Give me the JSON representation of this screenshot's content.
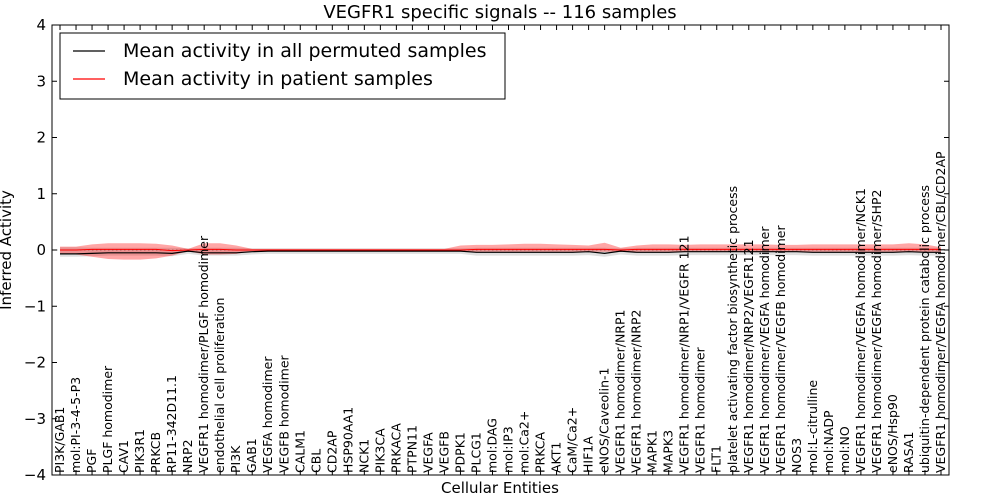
{
  "chart_data": {
    "type": "line",
    "title": "VEGFR1 specific signals -- 116 samples",
    "xlabel": "Cellular Entities",
    "ylabel": "Inferred Activity",
    "ylim": [
      -4,
      4
    ],
    "yticks": [
      -4,
      -3,
      -2,
      -1,
      0,
      1,
      2,
      3,
      4
    ],
    "ytick_labels": [
      "−4",
      "−3",
      "−2",
      "−1",
      "0",
      "1",
      "2",
      "3",
      "4"
    ],
    "legend": {
      "placement": "top-left",
      "entries": [
        {
          "label": "Mean activity in all permuted samples",
          "color": "#000000"
        },
        {
          "label": "Mean activity in patient samples",
          "color": "#ff0000"
        }
      ]
    },
    "categories": [
      "PI3K/GAB1",
      "mol:PI-3-4-5-P3",
      "PGF",
      "PLGF homodimer",
      "CAV1",
      "PIK3R1",
      "PRKCB",
      "RP11-342D11.1",
      "NRP2",
      "VEGFR1 homodimer/PLGF homodimer",
      "endothelial cell proliferation",
      "PI3K",
      "GAB1",
      "VEGFA homodimer",
      "VEGFB homodimer",
      "CALM1",
      "CBL",
      "CD2AP",
      "HSP90AA1",
      "NCK1",
      "PIK3CA",
      "PRKACA",
      "PTPN11",
      "VEGFA",
      "VEGFB",
      "PDPK1",
      "PLCG1",
      "mol:DAG",
      "mol:IP3",
      "mol:Ca2+",
      "PRKCA",
      "AKT1",
      "CaM/Ca2+",
      "HIF1A",
      "eNOS/Caveolin-1",
      "VEGFR1 homodimer/NRP1",
      "VEGFR1 homodimer/NRP2",
      "MAPK1",
      "MAPK3",
      "VEGFR1 homodimer/NRP1/VEGFR 121",
      "VEGFR1 homodimer",
      "FLT1",
      "platelet activating factor biosynthetic process",
      "VEGFR1 homodimer/NRP2/VEGFR121",
      "VEGFR1 homodimer/VEGFA homodimer",
      "VEGFR1 homodimer/VEGFB homodimer",
      "NOS3",
      "mol:L-citrulline",
      "mol:NADP",
      "mol:NO",
      "VEGFR1 homodimer/VEGFA homodimer/NCK1",
      "VEGFR1 homodimer/VEGFA homodimer/SHP2",
      "eNOS/Hsp90",
      "RASA1",
      "ubiquitin-dependent protein catabolic process",
      "VEGFR1 homodimer/VEGFA homodimer/CBL/CD2AP"
    ],
    "series": [
      {
        "name": "Mean activity in all permuted samples",
        "color": "#000000",
        "values": [
          -0.07,
          -0.07,
          -0.06,
          -0.05,
          -0.05,
          -0.05,
          -0.05,
          -0.06,
          -0.02,
          -0.05,
          -0.05,
          -0.05,
          -0.03,
          -0.02,
          -0.02,
          -0.02,
          -0.02,
          -0.02,
          -0.02,
          -0.02,
          -0.02,
          -0.02,
          -0.02,
          -0.02,
          -0.02,
          -0.02,
          -0.04,
          -0.04,
          -0.04,
          -0.04,
          -0.04,
          -0.04,
          -0.04,
          -0.03,
          -0.06,
          -0.02,
          -0.04,
          -0.04,
          -0.04,
          -0.03,
          -0.03,
          -0.03,
          -0.03,
          -0.03,
          -0.03,
          -0.03,
          -0.03,
          -0.04,
          -0.04,
          -0.04,
          -0.04,
          -0.04,
          -0.04,
          -0.03,
          -0.04,
          -0.04
        ],
        "band_low": [
          -0.12,
          -0.12,
          -0.11,
          -0.1,
          -0.1,
          -0.1,
          -0.1,
          -0.11,
          -0.07,
          -0.1,
          -0.1,
          -0.1,
          -0.08,
          -0.07,
          -0.07,
          -0.07,
          -0.07,
          -0.07,
          -0.07,
          -0.07,
          -0.07,
          -0.07,
          -0.07,
          -0.07,
          -0.07,
          -0.07,
          -0.1,
          -0.1,
          -0.1,
          -0.1,
          -0.1,
          -0.1,
          -0.1,
          -0.09,
          -0.12,
          -0.08,
          -0.1,
          -0.1,
          -0.1,
          -0.09,
          -0.09,
          -0.09,
          -0.09,
          -0.09,
          -0.09,
          -0.09,
          -0.09,
          -0.1,
          -0.1,
          -0.1,
          -0.1,
          -0.1,
          -0.1,
          -0.09,
          -0.1,
          -0.1
        ],
        "band_high": [
          0.05,
          0.05,
          0.04,
          0.04,
          0.04,
          0.04,
          0.04,
          0.04,
          0.03,
          0.04,
          0.04,
          0.04,
          0.03,
          0.03,
          0.03,
          0.03,
          0.03,
          0.03,
          0.03,
          0.03,
          0.03,
          0.03,
          0.03,
          0.03,
          0.03,
          0.03,
          0.04,
          0.04,
          0.04,
          0.04,
          0.04,
          0.04,
          0.04,
          0.04,
          0.04,
          0.03,
          0.04,
          0.04,
          0.04,
          0.04,
          0.04,
          0.04,
          0.04,
          0.04,
          0.04,
          0.04,
          0.04,
          0.04,
          0.04,
          0.04,
          0.04,
          0.04,
          0.04,
          0.04,
          0.04,
          0.04
        ]
      },
      {
        "name": "Mean activity in patient samples",
        "color": "#ff0000",
        "values": [
          0.0,
          0.0,
          0.01,
          0.01,
          0.01,
          0.01,
          0.01,
          -0.01,
          0.0,
          0.01,
          0.01,
          0.0,
          0.0,
          0.0,
          0.0,
          0.0,
          0.0,
          0.0,
          0.0,
          0.0,
          0.0,
          0.0,
          0.0,
          0.0,
          0.0,
          0.0,
          0.01,
          0.01,
          0.01,
          0.01,
          0.01,
          0.01,
          0.01,
          0.01,
          0.01,
          0.0,
          0.01,
          0.01,
          0.01,
          0.01,
          0.01,
          0.01,
          0.01,
          0.01,
          0.01,
          0.01,
          0.01,
          0.01,
          0.01,
          0.01,
          0.01,
          0.01,
          0.01,
          0.01,
          0.01,
          0.01
        ],
        "band_low": [
          -0.08,
          -0.08,
          -0.12,
          -0.16,
          -0.17,
          -0.17,
          -0.15,
          -0.1,
          -0.02,
          -0.08,
          -0.08,
          -0.07,
          -0.02,
          -0.02,
          -0.02,
          -0.02,
          -0.02,
          -0.02,
          -0.02,
          -0.02,
          -0.02,
          -0.02,
          -0.02,
          -0.02,
          -0.02,
          -0.02,
          -0.03,
          -0.03,
          -0.03,
          -0.03,
          -0.03,
          -0.03,
          -0.03,
          -0.03,
          -0.03,
          -0.03,
          -0.03,
          -0.03,
          -0.03,
          -0.03,
          -0.03,
          -0.03,
          -0.03,
          -0.03,
          -0.03,
          -0.03,
          -0.03,
          -0.03,
          -0.03,
          -0.03,
          -0.03,
          -0.03,
          -0.03,
          -0.03,
          -0.03,
          -0.03
        ],
        "band_high": [
          0.06,
          0.06,
          0.1,
          0.12,
          0.12,
          0.12,
          0.11,
          0.08,
          0.02,
          0.12,
          0.12,
          0.08,
          0.02,
          0.02,
          0.02,
          0.02,
          0.02,
          0.02,
          0.02,
          0.02,
          0.02,
          0.02,
          0.02,
          0.02,
          0.02,
          0.08,
          0.09,
          0.09,
          0.1,
          0.11,
          0.11,
          0.1,
          0.09,
          0.08,
          0.13,
          0.04,
          0.08,
          0.1,
          0.1,
          0.09,
          0.1,
          0.1,
          0.1,
          0.1,
          0.1,
          0.09,
          0.09,
          0.1,
          0.1,
          0.1,
          0.1,
          0.1,
          0.1,
          0.12,
          0.1,
          0.05
        ]
      }
    ]
  }
}
